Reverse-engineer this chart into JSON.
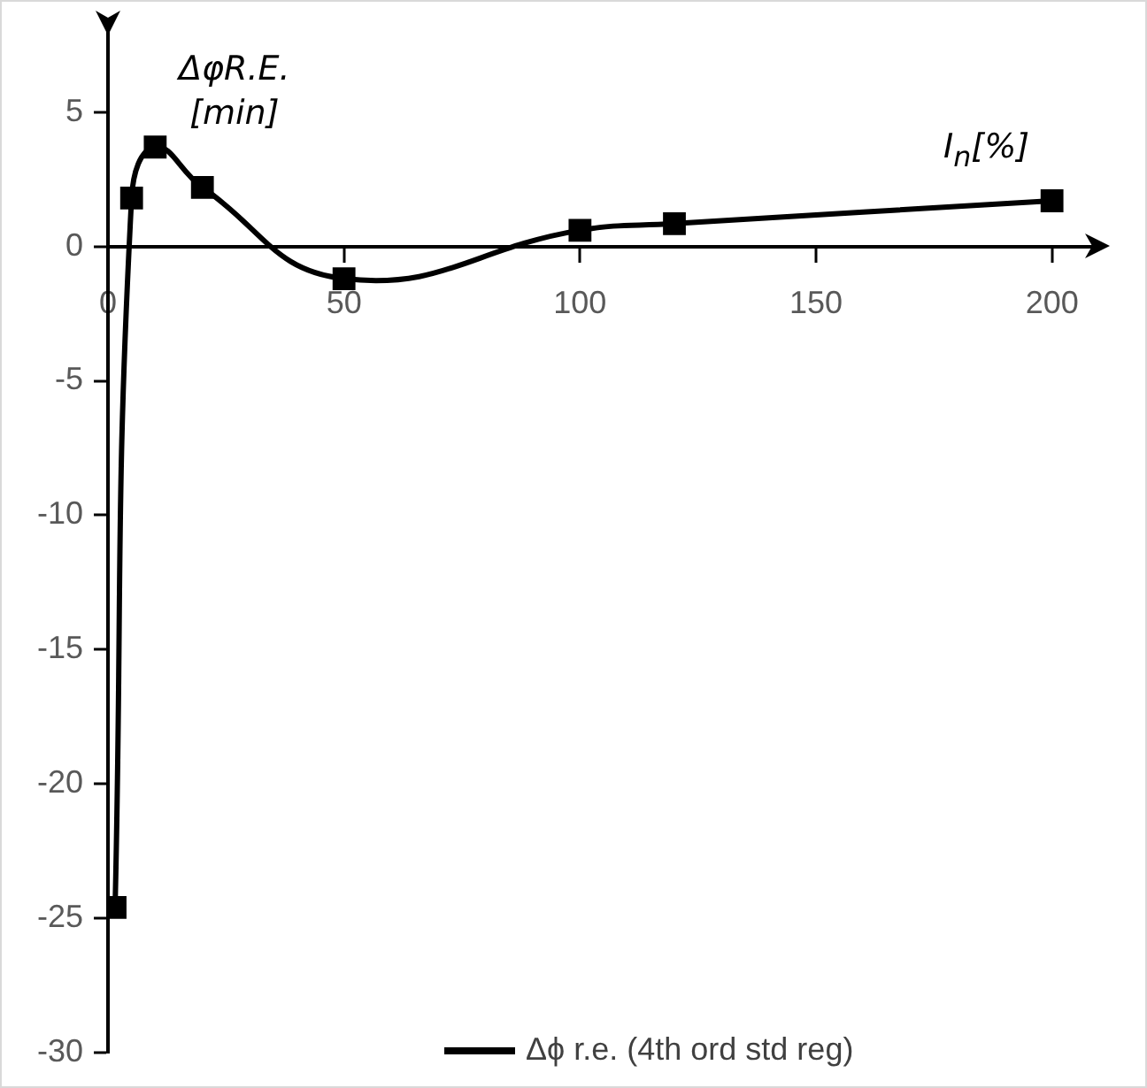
{
  "chart_data": {
    "type": "line",
    "xlabel": "I$_{n}$[%]",
    "ylabel": "ΔφR.E. [min]",
    "x": [
      1.5,
      5,
      10,
      20,
      50,
      100,
      120,
      200
    ],
    "series": [
      {
        "name": "Δϕ r.e. (4th ord std reg)",
        "color": "#000000",
        "values": [
          -24.6,
          1.8,
          3.7,
          2.2,
          -1.2,
          0.6,
          0.85,
          1.7
        ]
      }
    ],
    "xlim": [
      0,
      210
    ],
    "ylim": [
      -30,
      8
    ],
    "xticks": [
      0,
      50,
      100,
      150,
      200
    ],
    "yticks": [
      -30,
      -25,
      -20,
      -15,
      -10,
      -5,
      0,
      5
    ],
    "grid": false,
    "legend": "bottom",
    "marker": "square",
    "line_style": "solid"
  }
}
